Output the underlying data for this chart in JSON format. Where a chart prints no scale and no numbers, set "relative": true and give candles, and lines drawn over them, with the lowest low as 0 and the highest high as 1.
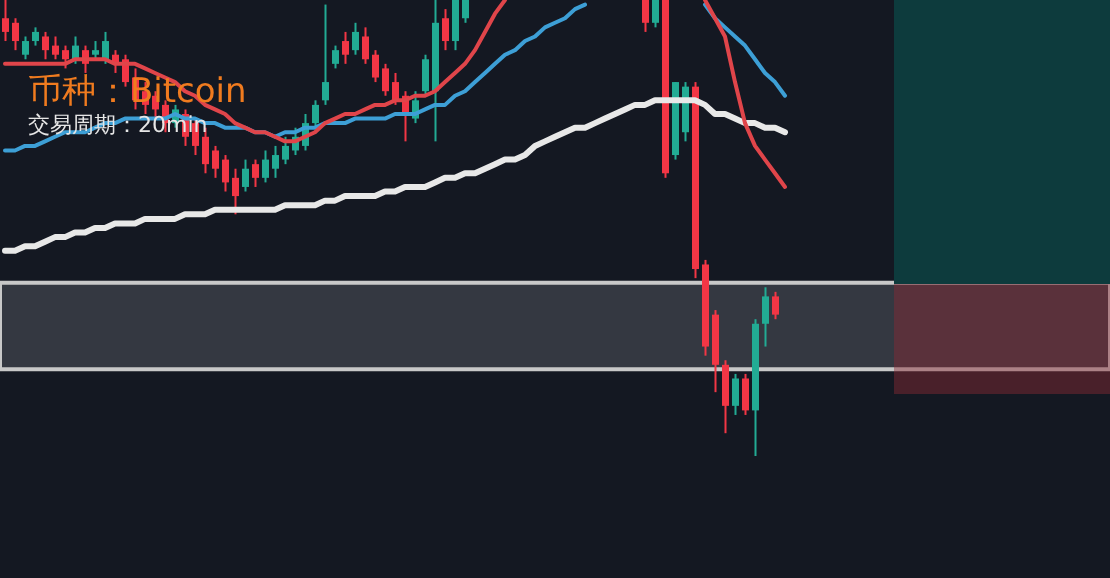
{
  "chart_data": {
    "type": "candlestick",
    "relative": true,
    "title": "币种：Bitcoin",
    "subtitle": "交易周期：20min",
    "categories": [
      null,
      null,
      null,
      null,
      null,
      null,
      null,
      null,
      null,
      null,
      null,
      null,
      null,
      null,
      null,
      null,
      null,
      null,
      null,
      null,
      null,
      null,
      null,
      null,
      null,
      null,
      null,
      null,
      null,
      null,
      null,
      null,
      null,
      null,
      null,
      null,
      null,
      null,
      null,
      null,
      null,
      null,
      null,
      null,
      null,
      null,
      null,
      null,
      null,
      null,
      null,
      null,
      null,
      null,
      null,
      null,
      null,
      null,
      null,
      null,
      null,
      null,
      null,
      null,
      null,
      null,
      null,
      null,
      null,
      null,
      null,
      null,
      null,
      null,
      null,
      null,
      null,
      null,
      null,
      null,
      null,
      null,
      null,
      null,
      null,
      null,
      null,
      null,
      null,
      null,
      null,
      null,
      null,
      null,
      null,
      null,
      null,
      null,
      null,
      null,
      null,
      null,
      null,
      null,
      null,
      null,
      null,
      null,
      null,
      null,
      null
    ],
    "ohlc": [
      [
        0.96,
        1,
        0.91,
        0.93
      ],
      [
        0.95,
        0.96,
        0.89,
        0.91
      ],
      [
        0.88,
        0.92,
        0.87,
        0.91
      ],
      [
        0.91,
        0.94,
        0.9,
        0.93
      ],
      [
        0.92,
        0.93,
        0.87,
        0.89
      ],
      [
        0.9,
        0.92,
        0.87,
        0.88
      ],
      [
        0.89,
        0.9,
        0.85,
        0.87
      ],
      [
        0.87,
        0.92,
        0.86,
        0.9
      ],
      [
        0.89,
        0.9,
        0.84,
        0.86
      ],
      [
        0.88,
        0.91,
        0.87,
        0.89
      ],
      [
        0.87,
        0.93,
        0.86,
        0.91
      ],
      [
        0.88,
        0.89,
        0.84,
        0.86
      ],
      [
        0.87,
        0.88,
        0.81,
        0.82
      ],
      [
        0.83,
        0.85,
        0.76,
        0.78
      ],
      [
        0.8,
        0.82,
        0.75,
        0.77
      ],
      [
        0.79,
        0.8,
        0.74,
        0.76
      ],
      [
        0.77,
        0.78,
        0.71,
        0.73
      ],
      [
        0.73,
        0.77,
        0.72,
        0.76
      ],
      [
        0.75,
        0.76,
        0.68,
        0.7
      ],
      [
        0.73,
        0.74,
        0.66,
        0.68
      ],
      [
        0.7,
        0.72,
        0.62,
        0.64
      ],
      [
        0.67,
        0.68,
        0.61,
        0.63
      ],
      [
        0.65,
        0.66,
        0.58,
        0.6
      ],
      [
        0.61,
        0.63,
        0.53,
        0.57
      ],
      [
        0.59,
        0.65,
        0.58,
        0.63
      ],
      [
        0.64,
        0.65,
        0.59,
        0.61
      ],
      [
        0.61,
        0.67,
        0.6,
        0.65
      ],
      [
        0.63,
        0.68,
        0.61,
        0.66
      ],
      [
        0.65,
        0.7,
        0.64,
        0.68
      ],
      [
        0.67,
        0.72,
        0.66,
        0.7
      ],
      [
        0.68,
        0.75,
        0.67,
        0.73
      ],
      [
        0.73,
        0.78,
        0.72,
        0.77
      ],
      [
        0.78,
        0.99,
        0.77,
        0.82
      ],
      [
        0.86,
        0.9,
        0.85,
        0.89
      ],
      [
        0.91,
        0.93,
        0.86,
        0.88
      ],
      [
        0.89,
        0.95,
        0.88,
        0.93
      ],
      [
        0.92,
        0.94,
        0.86,
        0.87
      ],
      [
        0.88,
        0.89,
        0.82,
        0.83
      ],
      [
        0.85,
        0.86,
        0.79,
        0.8
      ],
      [
        0.82,
        0.84,
        0.77,
        0.78
      ],
      [
        0.79,
        0.8,
        0.69,
        0.75
      ],
      [
        0.74,
        0.8,
        0.73,
        0.78
      ],
      [
        0.8,
        0.88,
        0.79,
        0.87
      ],
      [
        0.8,
        1,
        0.69,
        0.95
      ],
      [
        0.96,
        0.98,
        0.89,
        0.91
      ],
      [
        0.91,
        1,
        0.89,
        1
      ],
      [
        0.96,
        1,
        0.95,
        1
      ],
      null,
      null,
      null,
      null,
      null,
      null,
      null,
      null,
      null,
      null,
      null,
      null,
      null,
      null,
      null,
      null,
      null,
      [
        1,
        1,
        0.93,
        0.95
      ],
      [
        0.95,
        1,
        0.94,
        1
      ],
      [
        1,
        1,
        0.61,
        0.62
      ],
      [
        0.66,
        0.82,
        0.65,
        0.82
      ],
      [
        0.71,
        0.82,
        0.69,
        0.81
      ],
      [
        0.81,
        0.82,
        0.39,
        0.41
      ],
      [
        0.42,
        0.43,
        0.22,
        0.24
      ],
      [
        0.31,
        0.32,
        0.14,
        0.2
      ],
      [
        0.2,
        0.21,
        0.05,
        0.11
      ],
      [
        0.11,
        0.18,
        0.09,
        0.17
      ],
      [
        0.17,
        0.18,
        0.09,
        0.1
      ],
      [
        0.1,
        0.3,
        0,
        0.29
      ],
      [
        0.29,
        0.37,
        0.24,
        0.35
      ],
      [
        0.35,
        0.36,
        0.3,
        0.31
      ],
      null,
      null,
      null,
      null,
      null,
      null,
      null,
      null,
      null,
      null,
      null,
      null,
      null,
      null,
      null,
      null,
      null,
      null,
      null,
      null,
      null,
      null,
      null,
      null,
      null,
      null,
      null,
      null,
      null,
      null,
      null,
      null,
      null
    ],
    "colors": [
      "#f23645",
      "#f23645",
      "#22ab94",
      "#22ab94",
      "#f23645",
      "#f23645",
      "#f23645",
      "#22ab94",
      "#f23645",
      "#22ab94",
      "#22ab94",
      "#f23645",
      "#f23645",
      "#f23645",
      "#f23645",
      "#f23645",
      "#f23645",
      "#22ab94",
      "#f23645",
      "#f23645",
      "#f23645",
      "#f23645",
      "#f23645",
      "#f23645",
      "#22ab94",
      "#f23645",
      "#22ab94",
      "#22ab94",
      "#22ab94",
      "#22ab94",
      "#22ab94",
      "#22ab94",
      "#22ab94",
      "#22ab94",
      "#f23645",
      "#22ab94",
      "#f23645",
      "#f23645",
      "#f23645",
      "#f23645",
      "#f23645",
      "#22ab94",
      "#22ab94",
      "#22ab94",
      "#f23645",
      "#22ab94",
      "#22ab94",
      null,
      null,
      null,
      null,
      null,
      null,
      null,
      null,
      null,
      null,
      null,
      null,
      null,
      null,
      null,
      null,
      null,
      "#f23645",
      "#22ab94",
      "#f23645",
      "#22ab94",
      "#22ab94",
      "#f23645",
      "#f23645",
      "#f23645",
      "#f23645",
      "#22ab94",
      "#f23645",
      "#22ab94",
      "#22ab94",
      "#f23645",
      null,
      null,
      null,
      null,
      null,
      null,
      null,
      null,
      null,
      null,
      null,
      null,
      null,
      null,
      null,
      null,
      null,
      null,
      null,
      null,
      null,
      null,
      null,
      null,
      null,
      null,
      null,
      null,
      null,
      null,
      null,
      null,
      null
    ],
    "series": [
      {
        "type": "line",
        "color": "#e8e8e8",
        "values": [
          0.45,
          0.45,
          0.46,
          0.46,
          0.47,
          0.48,
          0.48,
          0.49,
          0.49,
          0.5,
          0.5,
          0.51,
          0.51,
          0.51,
          0.52,
          0.52,
          0.52,
          0.52,
          0.53,
          0.53,
          0.53,
          0.54,
          0.54,
          0.54,
          0.54,
          0.54,
          0.54,
          0.54,
          0.55,
          0.55,
          0.55,
          0.55,
          0.56,
          0.56,
          0.57,
          0.57,
          0.57,
          0.57,
          0.58,
          0.58,
          0.59,
          0.59,
          0.59,
          0.6,
          0.61,
          0.61,
          0.62,
          0.62,
          0.63,
          0.64,
          0.65,
          0.65,
          0.66,
          0.68,
          0.69,
          0.7,
          0.71,
          0.72,
          0.72,
          0.73,
          0.74,
          0.75,
          0.76,
          0.77,
          0.77,
          0.78,
          0.78,
          0.78,
          0.78,
          0.78,
          0.77,
          0.75,
          0.75,
          0.74,
          0.73,
          0.73,
          0.72,
          0.72,
          0.71,
          null,
          null,
          null,
          null,
          null,
          null,
          null,
          null,
          null,
          null,
          null,
          null,
          null,
          null,
          null,
          null,
          null,
          null,
          null,
          null,
          null,
          null,
          null,
          null,
          null,
          null,
          null,
          null,
          null,
          null,
          null,
          null
        ]
      },
      {
        "type": "line",
        "color": "#3d9fd6",
        "values": [
          0.67,
          0.67,
          0.68,
          0.68,
          0.69,
          0.7,
          0.71,
          0.71,
          0.71,
          0.72,
          0.73,
          0.73,
          0.74,
          0.74,
          0.74,
          0.74,
          0.74,
          0.75,
          0.74,
          0.74,
          0.73,
          0.73,
          0.72,
          0.72,
          0.72,
          0.71,
          0.71,
          0.7,
          0.71,
          0.71,
          0.72,
          0.72,
          0.73,
          0.73,
          0.73,
          0.74,
          0.74,
          0.74,
          0.74,
          0.75,
          0.75,
          0.75,
          0.76,
          0.77,
          0.77,
          0.79,
          0.8,
          0.82,
          0.84,
          0.86,
          0.88,
          0.89,
          0.91,
          0.92,
          0.94,
          0.95,
          0.96,
          0.98,
          0.99,
          null,
          null,
          null,
          null,
          null,
          null,
          null,
          null,
          null,
          null,
          null,
          0.99,
          0.96,
          0.94,
          0.92,
          0.9,
          0.87,
          0.84,
          0.82,
          0.79,
          null,
          null,
          null,
          null,
          null,
          null,
          null,
          null,
          null,
          null,
          null,
          null,
          null,
          null,
          null,
          null,
          null,
          null,
          null,
          null,
          null,
          null,
          null,
          null,
          null,
          null,
          null,
          null,
          null,
          null,
          null,
          null
        ]
      },
      {
        "type": "line",
        "color": "#e0454a",
        "values": [
          0.86,
          0.86,
          0.86,
          0.86,
          0.86,
          0.86,
          0.86,
          0.87,
          0.87,
          0.87,
          0.87,
          0.86,
          0.86,
          0.86,
          0.85,
          0.84,
          0.83,
          0.82,
          0.8,
          0.79,
          0.77,
          0.76,
          0.75,
          0.73,
          0.72,
          0.71,
          0.71,
          0.7,
          0.69,
          0.69,
          0.7,
          0.71,
          0.73,
          0.74,
          0.75,
          0.75,
          0.76,
          0.77,
          0.77,
          0.78,
          0.78,
          0.79,
          0.79,
          0.8,
          0.82,
          0.84,
          0.86,
          0.89,
          0.93,
          0.97,
          1,
          null,
          null,
          null,
          null,
          null,
          null,
          null,
          null,
          null,
          null,
          null,
          null,
          null,
          null,
          null,
          null,
          null,
          null,
          null,
          1,
          0.96,
          0.92,
          0.82,
          0.73,
          0.68,
          0.65,
          0.62,
          0.59,
          null,
          null,
          null,
          null,
          null,
          null,
          null,
          null,
          null,
          null,
          null,
          null,
          null,
          null,
          null,
          null,
          null,
          null,
          null,
          null,
          null,
          null,
          null,
          null,
          null,
          null,
          null,
          null,
          null,
          null,
          null,
          null
        ]
      }
    ],
    "bands": [
      {
        "axis": "y",
        "from": 0.19,
        "to": 0.38,
        "color": "#3a3e46"
      }
    ]
  }
}
